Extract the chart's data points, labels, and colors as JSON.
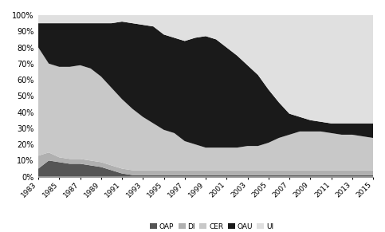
{
  "years": [
    1983,
    1984,
    1985,
    1986,
    1987,
    1988,
    1989,
    1990,
    1991,
    1992,
    1993,
    1994,
    1995,
    1996,
    1997,
    1998,
    1999,
    2000,
    2001,
    2002,
    2003,
    2004,
    2005,
    2006,
    2007,
    2008,
    2009,
    2010,
    2011,
    2012,
    2013,
    2014,
    2015
  ],
  "series": {
    "OAP": [
      0.05,
      0.1,
      0.09,
      0.08,
      0.08,
      0.07,
      0.06,
      0.04,
      0.02,
      0.01,
      0.01,
      0.01,
      0.01,
      0.01,
      0.01,
      0.01,
      0.01,
      0.01,
      0.01,
      0.01,
      0.01,
      0.01,
      0.01,
      0.01,
      0.01,
      0.01,
      0.01,
      0.01,
      0.01,
      0.01,
      0.01,
      0.01,
      0.01
    ],
    "DI": [
      0.08,
      0.05,
      0.03,
      0.03,
      0.03,
      0.03,
      0.03,
      0.03,
      0.03,
      0.03,
      0.03,
      0.03,
      0.03,
      0.03,
      0.03,
      0.03,
      0.03,
      0.03,
      0.03,
      0.03,
      0.03,
      0.03,
      0.03,
      0.03,
      0.03,
      0.03,
      0.03,
      0.03,
      0.03,
      0.03,
      0.03,
      0.03,
      0.03
    ],
    "CER": [
      0.67,
      0.55,
      0.56,
      0.57,
      0.58,
      0.57,
      0.53,
      0.48,
      0.43,
      0.38,
      0.33,
      0.29,
      0.25,
      0.23,
      0.18,
      0.16,
      0.14,
      0.14,
      0.14,
      0.14,
      0.15,
      0.15,
      0.17,
      0.2,
      0.22,
      0.24,
      0.24,
      0.24,
      0.23,
      0.22,
      0.22,
      0.21,
      0.2
    ],
    "OAU": [
      0.15,
      0.25,
      0.27,
      0.27,
      0.26,
      0.28,
      0.33,
      0.4,
      0.48,
      0.53,
      0.57,
      0.6,
      0.59,
      0.59,
      0.62,
      0.66,
      0.69,
      0.67,
      0.62,
      0.57,
      0.5,
      0.44,
      0.33,
      0.22,
      0.13,
      0.09,
      0.07,
      0.06,
      0.06,
      0.07,
      0.07,
      0.08,
      0.09
    ],
    "UI": [
      0.05,
      0.05,
      0.05,
      0.05,
      0.05,
      0.05,
      0.05,
      0.05,
      0.04,
      0.05,
      0.06,
      0.07,
      0.12,
      0.14,
      0.16,
      0.14,
      0.13,
      0.15,
      0.2,
      0.25,
      0.31,
      0.37,
      0.46,
      0.54,
      0.61,
      0.63,
      0.65,
      0.66,
      0.67,
      0.67,
      0.67,
      0.67,
      0.67
    ]
  },
  "colors": {
    "OAP": "#555555",
    "DI": "#b0b0b0",
    "CER": "#c8c8c8",
    "OAU": "#1a1a1a",
    "UI": "#e0e0e0"
  },
  "legend_labels": [
    "OAP",
    "DI",
    "CER",
    "OAU",
    "UI"
  ],
  "xticks": [
    1983,
    1985,
    1987,
    1989,
    1991,
    1993,
    1995,
    1997,
    1999,
    2001,
    2003,
    2005,
    2007,
    2009,
    2011,
    2013,
    2015
  ],
  "yticks": [
    0.0,
    0.1,
    0.2,
    0.3,
    0.4,
    0.5,
    0.6,
    0.7,
    0.8,
    0.9,
    1.0
  ],
  "ylabels": [
    "0%",
    "10%",
    "20%",
    "30%",
    "40%",
    "50%",
    "60%",
    "70%",
    "80%",
    "90%",
    "100%"
  ],
  "background_color": "#ffffff"
}
